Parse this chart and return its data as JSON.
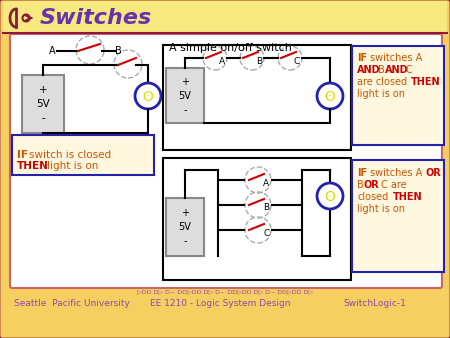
{
  "title": "Switches",
  "bg_color": "#f5d060",
  "inner_bg": "#ffffff",
  "border_color": "#8B1A3A",
  "title_color": "#6633aa",
  "footer_color": "#9944aa",
  "footer_text1": "Seattle  Pacific University",
  "footer_text2": "EE 1210 - Logic System Design",
  "footer_text3": "SwitchLogic-1",
  "simple_switch_label": "A simple on/off switch",
  "color_IF": "#cc5500",
  "color_AND_OR_THEN": "#cc0000",
  "color_normal": "#cc5500",
  "switch_color": "#cc0000",
  "wire_color": "#000000",
  "battery_border": "#888888",
  "battery_fill": "#dddddd",
  "bulb_color": "#2222aa",
  "bulb_fill": "#dddd00",
  "dashed_circle_color": "#aaaaaa",
  "note_bg": "#fff8e0",
  "note_border": "#2222aa"
}
